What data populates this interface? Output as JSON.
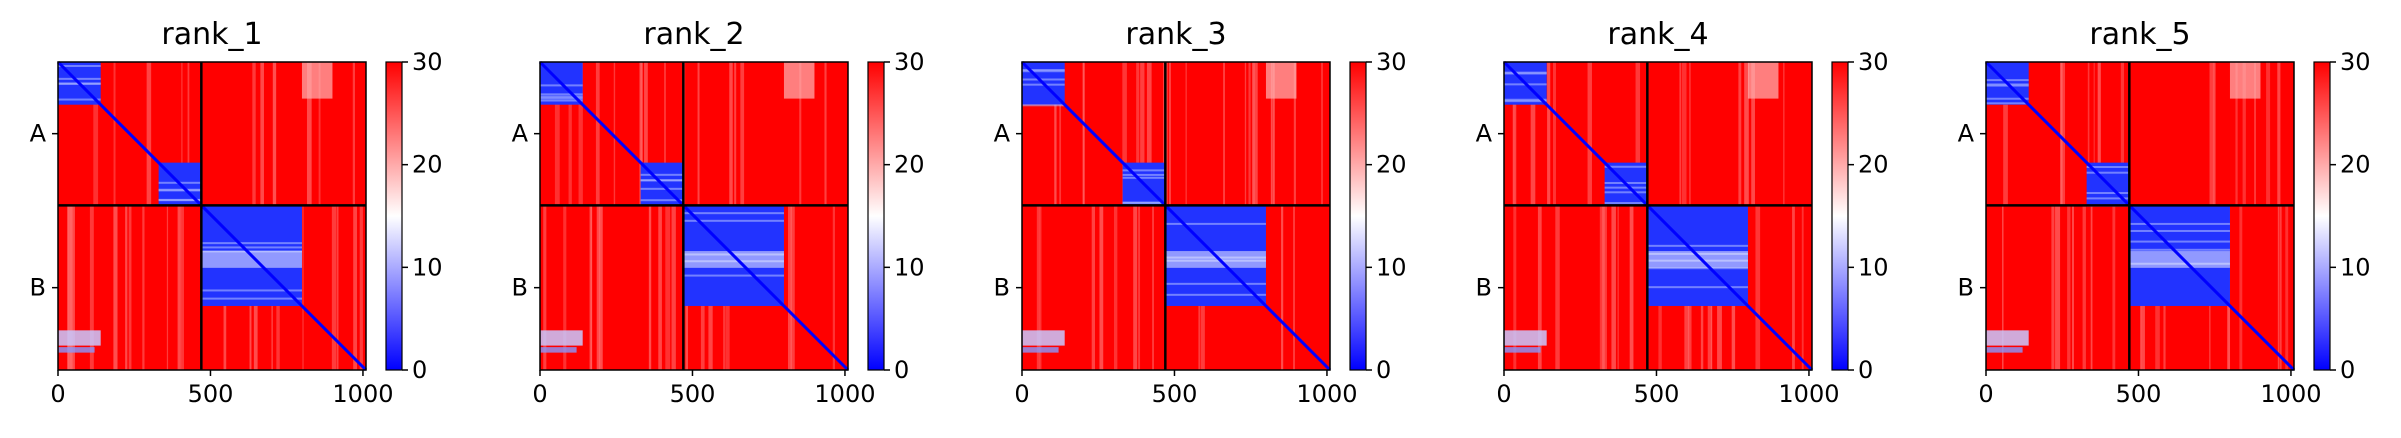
{
  "chart_data": [
    {
      "type": "heatmap",
      "title": "rank_1",
      "chains": [
        "A",
        "B"
      ],
      "chain_boundary": 470,
      "x_ticks": [
        0,
        500,
        1000
      ],
      "xlim": [
        0,
        1010
      ],
      "colorbar": {
        "ticks": [
          0,
          10,
          20,
          30
        ],
        "range": [
          0,
          30
        ],
        "colors": [
          "#0000ff",
          "#ffffff",
          "#ff0000"
        ]
      },
      "low_error_blocks": [
        [
          0,
          140,
          0,
          140
        ],
        [
          330,
          470,
          330,
          470
        ],
        [
          470,
          800,
          470,
          800
        ]
      ]
    },
    {
      "type": "heatmap",
      "title": "rank_2",
      "chains": [
        "A",
        "B"
      ],
      "chain_boundary": 470,
      "x_ticks": [
        0,
        500,
        1000
      ],
      "xlim": [
        0,
        1010
      ],
      "colorbar": {
        "ticks": [
          0,
          10,
          20,
          30
        ],
        "range": [
          0,
          30
        ],
        "colors": [
          "#0000ff",
          "#ffffff",
          "#ff0000"
        ]
      },
      "low_error_blocks": [
        [
          0,
          140,
          0,
          140
        ],
        [
          330,
          470,
          330,
          470
        ],
        [
          470,
          800,
          470,
          800
        ]
      ]
    },
    {
      "type": "heatmap",
      "title": "rank_3",
      "chains": [
        "A",
        "B"
      ],
      "chain_boundary": 470,
      "x_ticks": [
        0,
        500,
        1000
      ],
      "xlim": [
        0,
        1010
      ],
      "colorbar": {
        "ticks": [
          0,
          10,
          20,
          30
        ],
        "range": [
          0,
          30
        ],
        "colors": [
          "#0000ff",
          "#ffffff",
          "#ff0000"
        ]
      },
      "low_error_blocks": [
        [
          0,
          140,
          0,
          140
        ],
        [
          330,
          470,
          330,
          470
        ],
        [
          470,
          800,
          470,
          800
        ]
      ]
    },
    {
      "type": "heatmap",
      "title": "rank_4",
      "chains": [
        "A",
        "B"
      ],
      "chain_boundary": 470,
      "x_ticks": [
        0,
        500,
        1000
      ],
      "xlim": [
        0,
        1010
      ],
      "colorbar": {
        "ticks": [
          0,
          10,
          20,
          30
        ],
        "range": [
          0,
          30
        ],
        "colors": [
          "#0000ff",
          "#ffffff",
          "#ff0000"
        ]
      },
      "low_error_blocks": [
        [
          0,
          140,
          0,
          140
        ],
        [
          330,
          470,
          330,
          470
        ],
        [
          470,
          800,
          470,
          800
        ]
      ]
    },
    {
      "type": "heatmap",
      "title": "rank_5",
      "chains": [
        "A",
        "B"
      ],
      "chain_boundary": 470,
      "x_ticks": [
        0,
        500,
        1000
      ],
      "xlim": [
        0,
        1010
      ],
      "colorbar": {
        "ticks": [
          0,
          10,
          20,
          30
        ],
        "range": [
          0,
          30
        ],
        "colors": [
          "#0000ff",
          "#ffffff",
          "#ff0000"
        ]
      },
      "low_error_blocks": [
        [
          0,
          140,
          0,
          140
        ],
        [
          330,
          470,
          330,
          470
        ],
        [
          470,
          800,
          470,
          800
        ]
      ]
    }
  ]
}
